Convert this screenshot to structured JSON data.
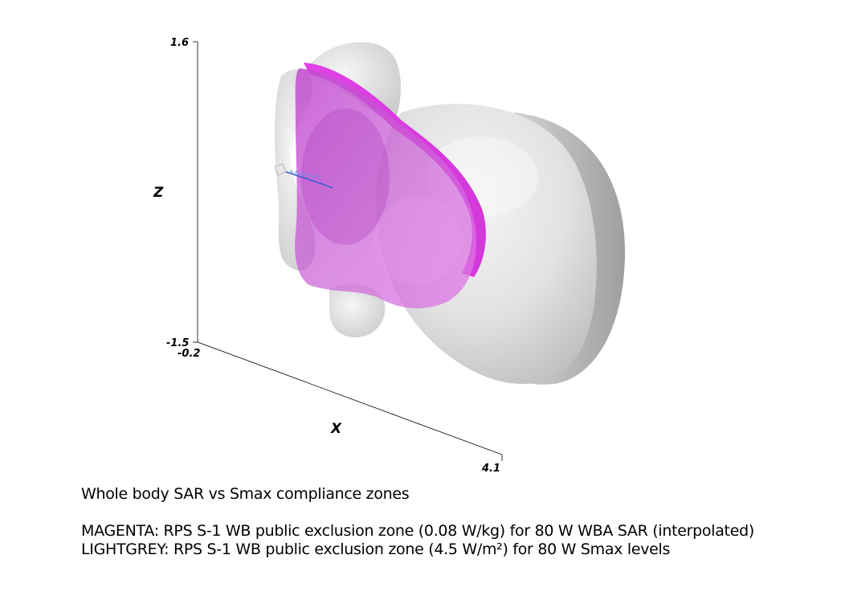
{
  "figure": {
    "title": "Whole body SAR vs Smax compliance zones",
    "legend": [
      {
        "color_name": "MAGENTA",
        "text": "MAGENTA: RPS S-1 WB public exclusion zone (0.08 W/kg) for 80 W WBA SAR (interpolated)",
        "color": "#e040e8"
      },
      {
        "color_name": "LIGHTGREY",
        "text": "LIGHTGREY: RPS S-1 WB public exclusion zone (4.5 W/m²) for 80 W Smax levels",
        "color": "#d3d3d3"
      }
    ]
  },
  "axes": {
    "z_label": "Z",
    "x_label": "X",
    "z_max": "1.6",
    "z_min": "-1.5",
    "x_min": "-0.2",
    "x_max": "4.1"
  },
  "colors": {
    "magenta": "#e040e8",
    "lightgrey": "#d3d3d3",
    "antenna": "#3a5fd0"
  }
}
